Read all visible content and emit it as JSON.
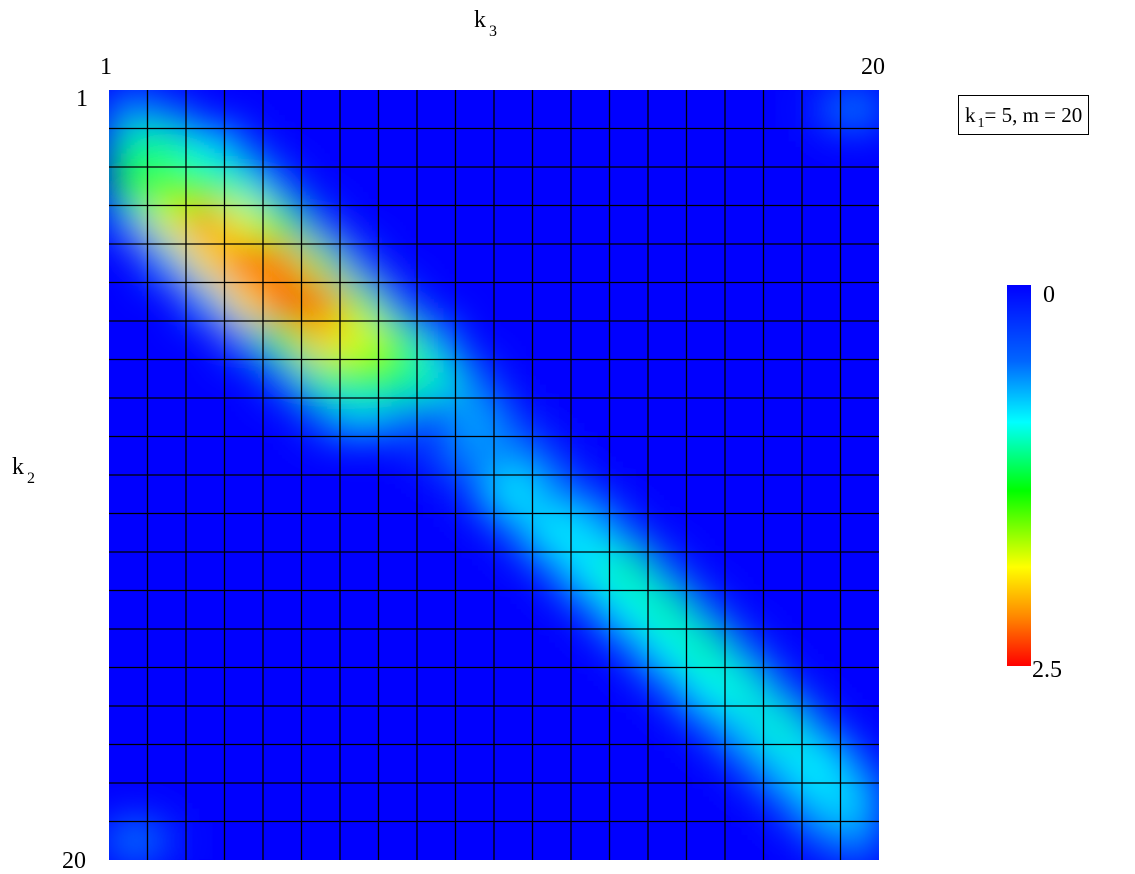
{
  "chart_data": {
    "type": "heatmap",
    "title": "",
    "xlabel": "k",
    "xlabel_subscript": "3",
    "ylabel": "k",
    "ylabel_subscript": "2",
    "x_range": [
      1,
      20
    ],
    "y_range": [
      1,
      20
    ],
    "x_tick_labels": [
      "1",
      "20"
    ],
    "y_tick_labels": [
      "1",
      "20"
    ],
    "grid": true,
    "y_axis_direction": "down",
    "annotation": {
      "prefix": "k",
      "subscript": "1",
      "suffix": "= 5, m = 20"
    },
    "colorbar": {
      "min": 0,
      "max": 2.5,
      "min_label": "0",
      "max_label": "2.5",
      "colormap": "jet",
      "min_color": "#0000ff",
      "max_color": "#ff0000",
      "orientation": "vertical",
      "placement": "right"
    },
    "cells": [
      {
        "x": 1,
        "y": 1,
        "v": 0.6
      },
      {
        "x": 2,
        "y": 1,
        "v": 0.3
      },
      {
        "x": 20,
        "y": 1,
        "v": 0.6
      },
      {
        "x": 19,
        "y": 1,
        "v": 0.2
      },
      {
        "x": 1,
        "y": 2,
        "v": 1.1
      },
      {
        "x": 2,
        "y": 2,
        "v": 1.1
      },
      {
        "x": 3,
        "y": 2,
        "v": 0.9
      },
      {
        "x": 4,
        "y": 2,
        "v": 0.3
      },
      {
        "x": 1,
        "y": 3,
        "v": 1.3
      },
      {
        "x": 2,
        "y": 3,
        "v": 1.5
      },
      {
        "x": 3,
        "y": 3,
        "v": 1.4
      },
      {
        "x": 4,
        "y": 3,
        "v": 1.0
      },
      {
        "x": 5,
        "y": 3,
        "v": 0.4
      },
      {
        "x": 1,
        "y": 4,
        "v": 0.6
      },
      {
        "x": 2,
        "y": 4,
        "v": 1.8
      },
      {
        "x": 3,
        "y": 4,
        "v": 2.2
      },
      {
        "x": 4,
        "y": 4,
        "v": 1.8
      },
      {
        "x": 5,
        "y": 4,
        "v": 1.3
      },
      {
        "x": 6,
        "y": 4,
        "v": 0.4
      },
      {
        "x": 2,
        "y": 5,
        "v": 0.7
      },
      {
        "x": 3,
        "y": 5,
        "v": 1.9
      },
      {
        "x": 4,
        "y": 5,
        "v": 2.5
      },
      {
        "x": 5,
        "y": 5,
        "v": 2.2
      },
      {
        "x": 6,
        "y": 5,
        "v": 1.6
      },
      {
        "x": 7,
        "y": 5,
        "v": 0.5
      },
      {
        "x": 3,
        "y": 6,
        "v": 0.7
      },
      {
        "x": 4,
        "y": 6,
        "v": 1.9
      },
      {
        "x": 5,
        "y": 6,
        "v": 2.4
      },
      {
        "x": 6,
        "y": 6,
        "v": 2.3
      },
      {
        "x": 7,
        "y": 6,
        "v": 1.6
      },
      {
        "x": 8,
        "y": 6,
        "v": 0.5
      },
      {
        "x": 4,
        "y": 7,
        "v": 0.6
      },
      {
        "x": 5,
        "y": 7,
        "v": 1.4
      },
      {
        "x": 6,
        "y": 7,
        "v": 2.0
      },
      {
        "x": 7,
        "y": 7,
        "v": 1.8
      },
      {
        "x": 8,
        "y": 7,
        "v": 1.5
      },
      {
        "x": 9,
        "y": 7,
        "v": 0.7
      },
      {
        "x": 5,
        "y": 8,
        "v": 0.5
      },
      {
        "x": 6,
        "y": 8,
        "v": 1.1
      },
      {
        "x": 7,
        "y": 8,
        "v": 1.4
      },
      {
        "x": 8,
        "y": 8,
        "v": 1.2
      },
      {
        "x": 9,
        "y": 8,
        "v": 1.0
      },
      {
        "x": 10,
        "y": 8,
        "v": 0.5
      },
      {
        "x": 6,
        "y": 9,
        "v": 0.4
      },
      {
        "x": 7,
        "y": 9,
        "v": 0.8
      },
      {
        "x": 8,
        "y": 9,
        "v": 0.6
      },
      {
        "x": 9,
        "y": 9,
        "v": 0.0
      },
      {
        "x": 10,
        "y": 9,
        "v": 0.7
      },
      {
        "x": 11,
        "y": 9,
        "v": 0.2
      },
      {
        "x": 9,
        "y": 10,
        "v": 0.3
      },
      {
        "x": 10,
        "y": 10,
        "v": 0.6
      },
      {
        "x": 11,
        "y": 10,
        "v": 0.6
      },
      {
        "x": 12,
        "y": 10,
        "v": 0.2
      },
      {
        "x": 10,
        "y": 11,
        "v": 0.3
      },
      {
        "x": 11,
        "y": 11,
        "v": 0.9
      },
      {
        "x": 12,
        "y": 11,
        "v": 0.6
      },
      {
        "x": 13,
        "y": 11,
        "v": 0.2
      },
      {
        "x": 11,
        "y": 12,
        "v": 0.3
      },
      {
        "x": 12,
        "y": 12,
        "v": 0.9
      },
      {
        "x": 13,
        "y": 12,
        "v": 0.8
      },
      {
        "x": 14,
        "y": 12,
        "v": 0.3
      },
      {
        "x": 12,
        "y": 13,
        "v": 0.3
      },
      {
        "x": 13,
        "y": 13,
        "v": 0.9
      },
      {
        "x": 14,
        "y": 13,
        "v": 1.1
      },
      {
        "x": 15,
        "y": 13,
        "v": 0.4
      },
      {
        "x": 13,
        "y": 14,
        "v": 0.3
      },
      {
        "x": 14,
        "y": 14,
        "v": 0.9
      },
      {
        "x": 15,
        "y": 14,
        "v": 1.1
      },
      {
        "x": 16,
        "y": 14,
        "v": 0.4
      },
      {
        "x": 14,
        "y": 15,
        "v": 0.3
      },
      {
        "x": 15,
        "y": 15,
        "v": 0.9
      },
      {
        "x": 16,
        "y": 15,
        "v": 1.1
      },
      {
        "x": 17,
        "y": 15,
        "v": 0.4
      },
      {
        "x": 15,
        "y": 16,
        "v": 0.3
      },
      {
        "x": 16,
        "y": 16,
        "v": 0.9
      },
      {
        "x": 17,
        "y": 16,
        "v": 1.0
      },
      {
        "x": 18,
        "y": 16,
        "v": 0.3
      },
      {
        "x": 16,
        "y": 17,
        "v": 0.3
      },
      {
        "x": 17,
        "y": 17,
        "v": 0.8
      },
      {
        "x": 18,
        "y": 17,
        "v": 1.0
      },
      {
        "x": 19,
        "y": 17,
        "v": 0.3
      },
      {
        "x": 17,
        "y": 18,
        "v": 0.3
      },
      {
        "x": 18,
        "y": 18,
        "v": 0.8
      },
      {
        "x": 19,
        "y": 18,
        "v": 0.9
      },
      {
        "x": 20,
        "y": 18,
        "v": 0.3
      },
      {
        "x": 18,
        "y": 19,
        "v": 0.3
      },
      {
        "x": 19,
        "y": 19,
        "v": 0.8
      },
      {
        "x": 20,
        "y": 19,
        "v": 0.8
      },
      {
        "x": 19,
        "y": 20,
        "v": 0.3
      },
      {
        "x": 20,
        "y": 20,
        "v": 0.6
      },
      {
        "x": 1,
        "y": 20,
        "v": 0.6
      },
      {
        "x": 2,
        "y": 20,
        "v": 0.2
      }
    ]
  }
}
